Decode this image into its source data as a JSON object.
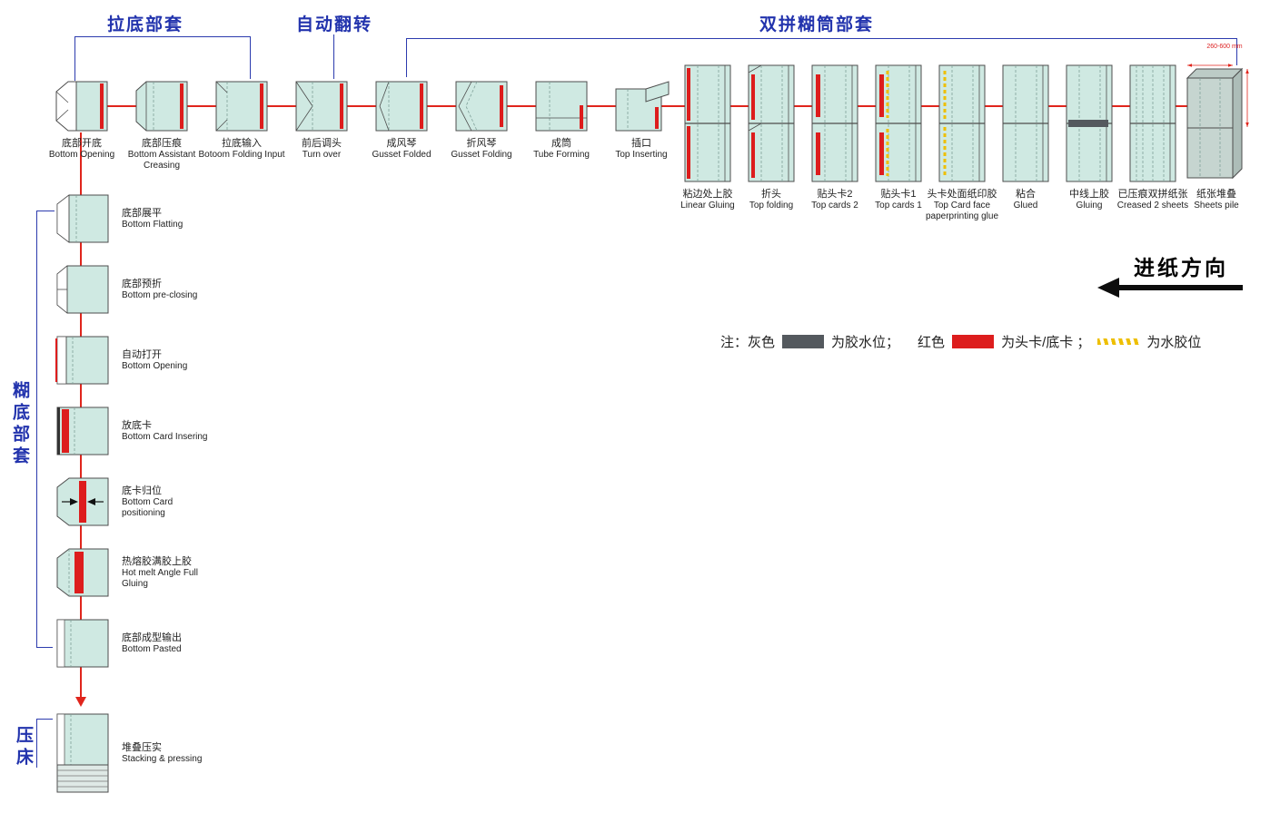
{
  "groups": {
    "pull_bottom": "拉底部套",
    "auto_turnover": "自动翻转",
    "double_tube": "双拼糊筒部套",
    "bottom_gluing": "糊底部套",
    "press": "压床"
  },
  "direction_label": "进纸方向",
  "dimension_note": "260-600 mm",
  "legend": {
    "note": "注：",
    "gray_label": "灰色",
    "gray_desc": "为胶水位；",
    "red_label": "红色",
    "red_desc": "为头卡/底卡 ；",
    "water_desc": "为水胶位"
  },
  "top_row": [
    {
      "zh": "底部开底",
      "en": "Bottom Opening",
      "icon": "bottom-opening"
    },
    {
      "zh": "底部压痕",
      "en": "Bottom Assistant Creasing",
      "icon": "bottom-creasing"
    },
    {
      "zh": "拉底输入",
      "en": "Botoom Folding Input",
      "icon": "folding-input"
    },
    {
      "zh": "前后调头",
      "en": "Turn over",
      "icon": "turn-over"
    },
    {
      "zh": "成风琴",
      "en": "Gusset Folded",
      "icon": "gusset-folded"
    },
    {
      "zh": "折风琴",
      "en": "Gusset Folding",
      "icon": "gusset-folding"
    },
    {
      "zh": "成筒",
      "en": "Tube Forming",
      "icon": "tube-forming"
    },
    {
      "zh": "插口",
      "en": "Top Inserting",
      "icon": "top-inserting"
    }
  ],
  "right_row": [
    {
      "zh": "粘边处上胶",
      "en": "Linear Gluing",
      "icon": "linear-gluing"
    },
    {
      "zh": "折头",
      "en": "Top folding",
      "icon": "top-folding"
    },
    {
      "zh": "贴头卡2",
      "en": "Top cards 2",
      "icon": "top-cards-2"
    },
    {
      "zh": "贴头卡1",
      "en": "Top cards 1",
      "icon": "top-cards-1"
    },
    {
      "zh": "头卡处面纸印胶",
      "en": "Top Card face paperprinting glue",
      "icon": "face-print-glue"
    },
    {
      "zh": "粘合",
      "en": "Glued",
      "icon": "glued"
    },
    {
      "zh": "中线上胶",
      "en": "Gluing",
      "icon": "center-gluing"
    },
    {
      "zh": "已压痕双拼纸张",
      "en": "Creased 2 sheets",
      "icon": "creased-sheets"
    },
    {
      "zh": "纸张堆叠",
      "en": "Sheets pile",
      "icon": "sheets-pile"
    }
  ],
  "left_col": [
    {
      "zh": "底部展平",
      "en": "Bottom Flatting",
      "icon": "bottom-flatting"
    },
    {
      "zh": "底部预折",
      "en": "Bottom pre-closing",
      "icon": "pre-closing"
    },
    {
      "zh": "自动打开",
      "en": "Bottom Opening",
      "icon": "auto-open"
    },
    {
      "zh": "放底卡",
      "en": "Bottom Card Insering",
      "icon": "card-inserting"
    },
    {
      "zh": "底卡归位",
      "en": "Bottom Card positioning",
      "icon": "card-positioning"
    },
    {
      "zh": "热熔胶满胶上胶",
      "en": "Hot melt Angle Full Gluing",
      "icon": "hot-melt-gluing"
    },
    {
      "zh": "底部成型输出",
      "en": "Bottom Pasted",
      "icon": "bottom-pasted"
    }
  ],
  "bottom_station": {
    "zh": "堆叠压实",
    "en": "Stacking & pressing",
    "icon": "stacking-pressing"
  },
  "colors": {
    "box_fill": "#cfe9e2",
    "box_stroke": "#4d4d4d",
    "line_red": "#e0251c",
    "accent_blue": "#2c3bae",
    "glue_gray": "#54595e",
    "card_red": "#dd1d1d",
    "water_yellow": "#eebf00"
  }
}
